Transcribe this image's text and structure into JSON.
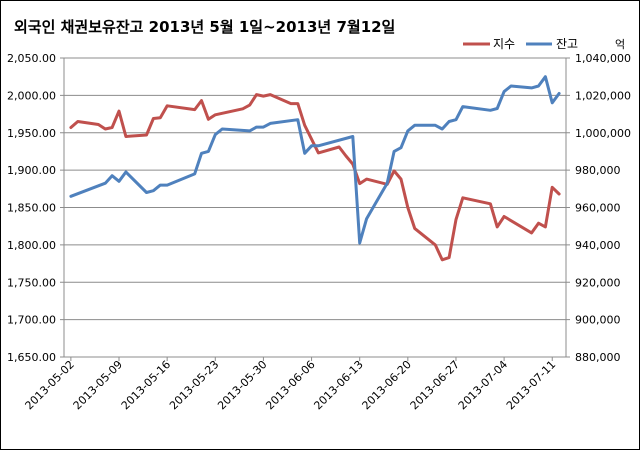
{
  "chart_data": {
    "type": "line",
    "title": "외국인 채권보유잔고   2013년 5월 1일~2013년 7월12일",
    "y2_unit": "억",
    "xlim": [
      "2013-05-01",
      "2013-07-13"
    ],
    "x_ticks": [
      "2013-05-02",
      "2013-05-09",
      "2013-05-16",
      "2013-05-23",
      "2013-05-30",
      "2013-06-06",
      "2013-06-13",
      "2013-06-20",
      "2013-06-27",
      "2013-07-04",
      "2013-07-11"
    ],
    "y_left": {
      "lim": [
        1650,
        2050
      ],
      "ticks": [
        1650,
        1700,
        1750,
        1800,
        1850,
        1900,
        1950,
        2000,
        2050
      ],
      "tick_labels": [
        "1,650.00",
        "1,700.00",
        "1,750.00",
        "1,800.00",
        "1,850.00",
        "1,900.00",
        "1,950.00",
        "2,000.00",
        "2,050.00"
      ]
    },
    "y_right": {
      "lim": [
        880000,
        1040000
      ],
      "ticks": [
        880000,
        900000,
        920000,
        940000,
        960000,
        980000,
        1000000,
        1020000,
        1040000
      ],
      "tick_labels": [
        "880,000",
        "900,000",
        "920,000",
        "940,000",
        "960,000",
        "980,000",
        "1,000,000",
        "1,020,000",
        "1,040,000"
      ]
    },
    "legend_position": "top-right",
    "grid": "horizontal",
    "series": [
      {
        "name": "지수",
        "axis": "left",
        "color": "#c0504d",
        "points": [
          [
            "2013-05-02",
            1957
          ],
          [
            "2013-05-03",
            1965
          ],
          [
            "2013-05-06",
            1961
          ],
          [
            "2013-05-07",
            1955
          ],
          [
            "2013-05-08",
            1957
          ],
          [
            "2013-05-09",
            1979
          ],
          [
            "2013-05-10",
            1945
          ],
          [
            "2013-05-13",
            1947
          ],
          [
            "2013-05-14",
            1969
          ],
          [
            "2013-05-15",
            1970
          ],
          [
            "2013-05-16",
            1986
          ],
          [
            "2013-05-20",
            1981
          ],
          [
            "2013-05-21",
            1993
          ],
          [
            "2013-05-22",
            1968
          ],
          [
            "2013-05-23",
            1974
          ],
          [
            "2013-05-27",
            1982
          ],
          [
            "2013-05-28",
            1987
          ],
          [
            "2013-05-29",
            2001
          ],
          [
            "2013-05-30",
            1999
          ],
          [
            "2013-05-31",
            2001
          ],
          [
            "2013-06-03",
            1989
          ],
          [
            "2013-06-04",
            1989
          ],
          [
            "2013-06-05",
            1960
          ],
          [
            "2013-06-07",
            1923
          ],
          [
            "2013-06-10",
            1931
          ],
          [
            "2013-06-11",
            1919
          ],
          [
            "2013-06-12",
            1908
          ],
          [
            "2013-06-13",
            1882
          ],
          [
            "2013-06-14",
            1888
          ],
          [
            "2013-06-17",
            1881
          ],
          [
            "2013-06-18",
            1899
          ],
          [
            "2013-06-19",
            1888
          ],
          [
            "2013-06-20",
            1850
          ],
          [
            "2013-06-21",
            1822
          ],
          [
            "2013-06-24",
            1800
          ],
          [
            "2013-06-25",
            1780
          ],
          [
            "2013-06-26",
            1783
          ],
          [
            "2013-06-27",
            1834
          ],
          [
            "2013-06-28",
            1863
          ],
          [
            "2013-07-01",
            1857
          ],
          [
            "2013-07-02",
            1855
          ],
          [
            "2013-07-03",
            1824
          ],
          [
            "2013-07-04",
            1838
          ],
          [
            "2013-07-08",
            1816
          ],
          [
            "2013-07-09",
            1829
          ],
          [
            "2013-07-10",
            1824
          ],
          [
            "2013-07-11",
            1877
          ],
          [
            "2013-07-12",
            1868
          ]
        ]
      },
      {
        "name": "잔고",
        "axis": "right",
        "color": "#4f81bd",
        "points": [
          [
            "2013-05-02",
            966000
          ],
          [
            "2013-05-07",
            973000
          ],
          [
            "2013-05-08",
            977000
          ],
          [
            "2013-05-09",
            974000
          ],
          [
            "2013-05-10",
            979000
          ],
          [
            "2013-05-13",
            968000
          ],
          [
            "2013-05-14",
            969000
          ],
          [
            "2013-05-15",
            972000
          ],
          [
            "2013-05-16",
            972000
          ],
          [
            "2013-05-20",
            978000
          ],
          [
            "2013-05-21",
            989000
          ],
          [
            "2013-05-22",
            990000
          ],
          [
            "2013-05-23",
            999000
          ],
          [
            "2013-05-24",
            1002000
          ],
          [
            "2013-05-28",
            1001000
          ],
          [
            "2013-05-29",
            1003000
          ],
          [
            "2013-05-30",
            1003000
          ],
          [
            "2013-05-31",
            1005000
          ],
          [
            "2013-06-04",
            1007000
          ],
          [
            "2013-06-05",
            989000
          ],
          [
            "2013-06-06",
            993000
          ],
          [
            "2013-06-07",
            993000
          ],
          [
            "2013-06-12",
            998000
          ],
          [
            "2013-06-13",
            941000
          ],
          [
            "2013-06-14",
            954000
          ],
          [
            "2013-06-17",
            973000
          ],
          [
            "2013-06-18",
            990000
          ],
          [
            "2013-06-19",
            992000
          ],
          [
            "2013-06-20",
            1001000
          ],
          [
            "2013-06-21",
            1004000
          ],
          [
            "2013-06-24",
            1004000
          ],
          [
            "2013-06-25",
            1002000
          ],
          [
            "2013-06-26",
            1006000
          ],
          [
            "2013-06-27",
            1007000
          ],
          [
            "2013-06-28",
            1014000
          ],
          [
            "2013-07-02",
            1012000
          ],
          [
            "2013-07-03",
            1013000
          ],
          [
            "2013-07-04",
            1022000
          ],
          [
            "2013-07-05",
            1025000
          ],
          [
            "2013-07-08",
            1024000
          ],
          [
            "2013-07-09",
            1025000
          ],
          [
            "2013-07-10",
            1030000
          ],
          [
            "2013-07-11",
            1016000
          ],
          [
            "2013-07-12",
            1021000
          ]
        ]
      }
    ]
  }
}
